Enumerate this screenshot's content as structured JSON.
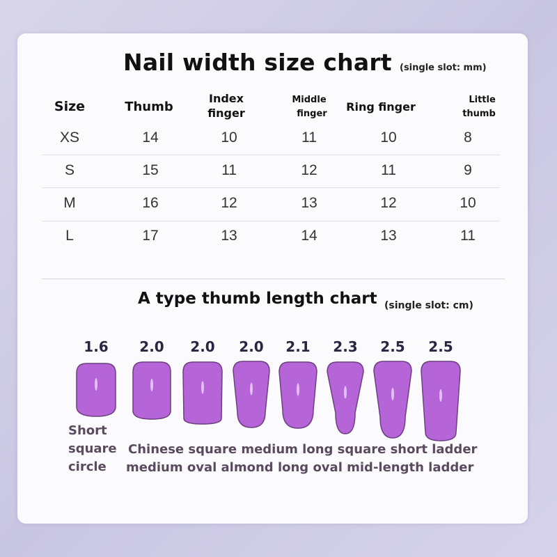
{
  "width_chart": {
    "title": "Nail width size chart",
    "unit": "(single slot: mm)",
    "headers": {
      "size": "Size",
      "thumb": "Thumb",
      "index_1": "Index",
      "index_2": "finger",
      "middle_1": "Middle",
      "middle_2": "finger",
      "ring": "Ring finger",
      "little_1": "Little",
      "little_2": "thumb"
    },
    "rows": [
      {
        "size": "XS",
        "thumb": "14",
        "index": "10",
        "middle": "11",
        "ring": "10",
        "little": "8"
      },
      {
        "size": "S",
        "thumb": "15",
        "index": "11",
        "middle": "12",
        "ring": "11",
        "little": "9"
      },
      {
        "size": "M",
        "thumb": "16",
        "index": "12",
        "middle": "13",
        "ring": "12",
        "little": "10"
      },
      {
        "size": "L",
        "thumb": "17",
        "index": "13",
        "middle": "14",
        "ring": "13",
        "little": "11"
      }
    ]
  },
  "length_chart": {
    "title": "A type thumb length chart",
    "unit": "(single slot: cm)",
    "nail_color": "#b565d8",
    "lengths": [
      "1.6",
      "2.0",
      "2.0",
      "2.0",
      "2.1",
      "2.3",
      "2.5",
      "2.5"
    ],
    "labels": {
      "first_1": "Short",
      "first_2": "square",
      "first_3": "circle",
      "line_1": "Chinese square medium long square short ladder",
      "line_2": "medium oval almond long oval mid-length ladder"
    }
  }
}
